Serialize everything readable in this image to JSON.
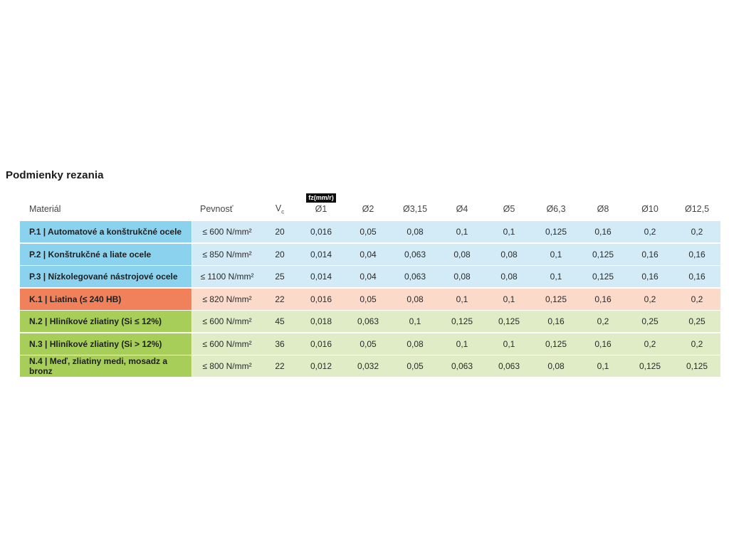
{
  "title": "Podmienky rezania",
  "chart_data": {
    "type": "table",
    "title": "Podmienky rezania",
    "feed_rate_badge": "fz(mm/r)",
    "headers": {
      "material": "Materiál",
      "strength": "Pevnosť",
      "vc_symbol": "V",
      "vc_subscript": "c",
      "diameters": [
        "Ø1",
        "Ø2",
        "Ø3,15",
        "Ø4",
        "Ø5",
        "Ø6,3",
        "Ø8",
        "Ø10",
        "Ø12,5"
      ]
    },
    "rows": [
      {
        "material": "P.1 | Automatové a konštrukčné ocele",
        "strength": "≤ 600 N/mm²",
        "vc": "20",
        "values": [
          "0,016",
          "0,05",
          "0,08",
          "0,1",
          "0,1",
          "0,125",
          "0,16",
          "0,2",
          "0,2"
        ],
        "color_strong": "#8BD2EE",
        "color_light": "#D2EBF7"
      },
      {
        "material": "P.2 | Konštrukčné a liate ocele",
        "strength": "≤ 850 N/mm²",
        "vc": "20",
        "values": [
          "0,014",
          "0,04",
          "0,063",
          "0,08",
          "0,08",
          "0,1",
          "0,125",
          "0,16",
          "0,16"
        ],
        "color_strong": "#8BD2EE",
        "color_light": "#D2EBF7"
      },
      {
        "material": "P.3 | Nízkolegované nástrojové ocele",
        "strength": "≤ 1100 N/mm²",
        "vc": "25",
        "values": [
          "0,014",
          "0,04",
          "0,063",
          "0,08",
          "0,08",
          "0,1",
          "0,125",
          "0,16",
          "0,16"
        ],
        "color_strong": "#8BD2EE",
        "color_light": "#D2EBF7"
      },
      {
        "material": "K.1 | Liatina (≤ 240 HB)",
        "strength": "≤ 820 N/mm²",
        "vc": "22",
        "values": [
          "0,016",
          "0,05",
          "0,08",
          "0,1",
          "0,1",
          "0,125",
          "0,16",
          "0,2",
          "0,2"
        ],
        "color_strong": "#F0815B",
        "color_light": "#FBDACA"
      },
      {
        "material": "N.2 | Hliníkové zliatiny (Si ≤ 12%)",
        "strength": "≤ 600 N/mm²",
        "vc": "45",
        "values": [
          "0,018",
          "0,063",
          "0,1",
          "0,125",
          "0,125",
          "0,16",
          "0,2",
          "0,25",
          "0,25"
        ],
        "color_strong": "#A6CE58",
        "color_light": "#DFECC6"
      },
      {
        "material": "N.3 | Hliníkové zliatiny (Si > 12%)",
        "strength": "≤ 600 N/mm²",
        "vc": "36",
        "values": [
          "0,016",
          "0,05",
          "0,08",
          "0,1",
          "0,1",
          "0,125",
          "0,16",
          "0,2",
          "0,2"
        ],
        "color_strong": "#A6CE58",
        "color_light": "#DFECC6"
      },
      {
        "material": "N.4 | Meď, zliatiny medi, mosadz a bronz",
        "strength": "≤ 800 N/mm²",
        "vc": "22",
        "values": [
          "0,012",
          "0,032",
          "0,05",
          "0,063",
          "0,063",
          "0,08",
          "0,1",
          "0,125",
          "0,125"
        ],
        "color_strong": "#A6CE58",
        "color_light": "#DFECC6"
      }
    ]
  }
}
